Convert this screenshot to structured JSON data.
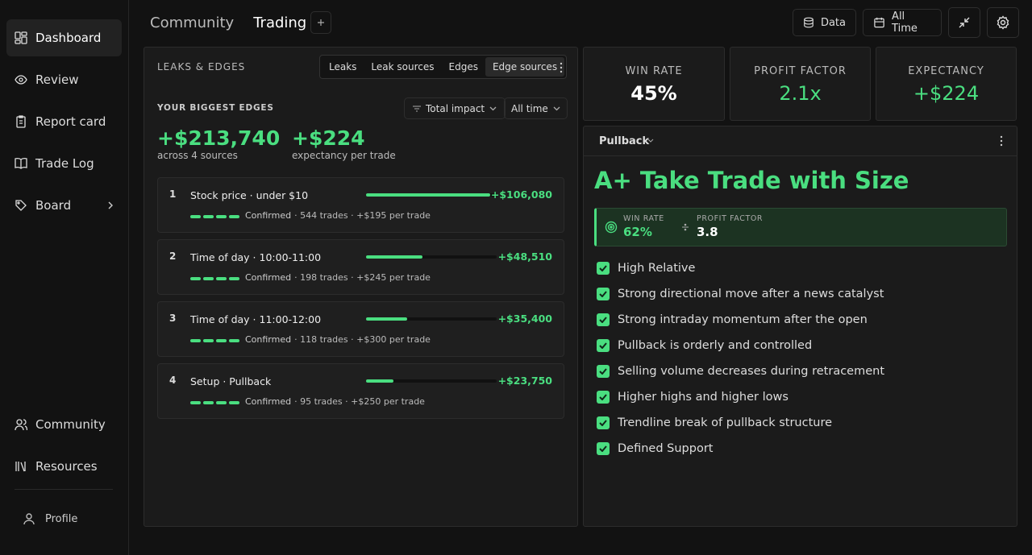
{
  "sidebar": {
    "nav": [
      "Dashboard",
      "Review",
      "Report card",
      "Trade Log",
      "Board"
    ],
    "bottom": [
      "Community",
      "Resources"
    ],
    "profile": "Profile"
  },
  "topbar": {
    "tabs": [
      "Community",
      "Trading"
    ],
    "buttons": [
      "Data",
      "All Time"
    ]
  },
  "leaks_panel": {
    "title": "LEAKS & EDGES",
    "segments": [
      "Leaks",
      "Leak sources",
      "Edges",
      "Edge sources"
    ],
    "section_title": "YOUR BIGGEST EDGES",
    "sort": "Total impact",
    "period": "All time",
    "summary": [
      {
        "value": "+$213,740",
        "caption": "across 4 sources"
      },
      {
        "value": "+$224",
        "caption": "expectancy per trade"
      }
    ],
    "edges": [
      {
        "rank": 1,
        "label": "Stock price · under $10",
        "impact": {
          "value": 106080,
          "label": "+$106,080"
        },
        "status": "Confirmed",
        "meta": "· 544 trades · +$195 per trade"
      },
      {
        "rank": 2,
        "label": "Time of day · 10:00-11:00",
        "impact": {
          "value": 48510,
          "label": "+$48,510"
        },
        "status": "Confirmed",
        "meta": "· 198 trades · +$245 per trade"
      },
      {
        "rank": 3,
        "label": "Time of day · 11:00-12:00",
        "impact": {
          "value": 35400,
          "label": "+$35,400"
        },
        "status": "Confirmed",
        "meta": "· 118 trades · +$300 per trade"
      },
      {
        "rank": 4,
        "label": "Setup · Pullback",
        "impact": {
          "value": 23750,
          "label": "+$23,750"
        },
        "status": "Confirmed",
        "meta": "· 95 trades · +$250 per trade"
      }
    ]
  },
  "stats": [
    {
      "label": "WIN RATE",
      "value": "45%"
    },
    {
      "label": "PROFIT FACTOR",
      "value": "2.1x"
    },
    {
      "label": "EXPECTANCY",
      "value": "+$224"
    }
  ],
  "setup": {
    "name": "Pullback",
    "headline": "A+ Take Trade with Size",
    "win_rate": {
      "label": "WIN RATE",
      "value": "62%"
    },
    "profit_factor": {
      "label": "PROFIT FACTOR",
      "value": "3.8"
    },
    "checklist": [
      "High Relative",
      "Strong directional move after a news catalyst",
      "Strong intraday momentum after the open",
      "Pullback is orderly and controlled",
      "Selling volume decreases during retracement",
      "Higher highs and higher lows",
      "Trendline break of pullback structure",
      "Defined Support"
    ]
  }
}
